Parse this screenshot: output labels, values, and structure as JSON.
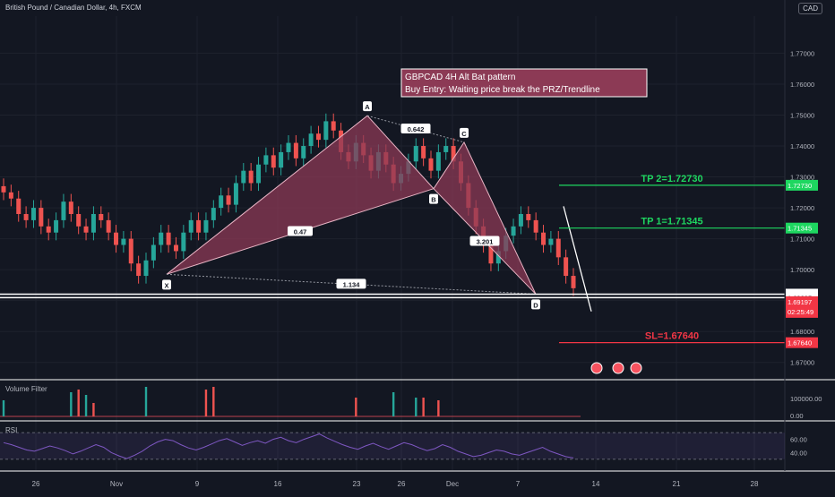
{
  "header": {
    "title": "British Pound / Canadian Dollar, 4h, FXCM",
    "currency_badge": "CAD"
  },
  "annotation": {
    "line1": "GBPCAD 4H Alt Bat pattern",
    "line2": "Buy Entry: Waiting price break the PRZ/Trendline"
  },
  "colors": {
    "bg": "#131722",
    "up": "#26a69a",
    "down": "#ef5350",
    "pattern": "#8c3a55",
    "tp": "#1ed760",
    "sl": "#f23645",
    "rsi": "#7e57c2"
  },
  "chart_data": {
    "type": "candlestick",
    "symbol": "GBPCAD",
    "timeframe": "4h",
    "x_tick_labels": [
      "26",
      "Nov",
      "9",
      "16",
      "23",
      "26",
      "Dec",
      "7",
      "14",
      "21",
      "28"
    ],
    "y_ticks": [
      "1.77000",
      "1.76000",
      "1.75000",
      "1.74000",
      "1.73000",
      "1.72000",
      "1.71000",
      "1.70000",
      "1.69000",
      "1.68000",
      "1.67000"
    ],
    "ylim": [
      1.665,
      1.782
    ],
    "price_series": [
      1.725,
      1.723,
      1.718,
      1.716,
      1.72,
      1.714,
      1.712,
      1.716,
      1.722,
      1.718,
      1.714,
      1.712,
      1.718,
      1.716,
      1.712,
      1.708,
      1.71,
      1.702,
      1.698,
      1.703,
      1.708,
      1.712,
      1.708,
      1.706,
      1.712,
      1.716,
      1.712,
      1.716,
      1.72,
      1.724,
      1.721,
      1.728,
      1.732,
      1.728,
      1.734,
      1.737,
      1.733,
      1.738,
      1.741,
      1.736,
      1.74,
      1.744,
      1.742,
      1.748,
      1.745,
      1.738,
      1.735,
      1.741,
      1.737,
      1.732,
      1.738,
      1.734,
      1.728,
      1.731,
      1.735,
      1.74,
      1.736,
      1.732,
      1.738,
      1.74,
      1.735,
      1.728,
      1.72,
      1.714,
      1.708,
      1.702,
      1.706,
      1.711,
      1.714,
      1.718,
      1.716,
      1.712,
      1.708,
      1.71,
      1.704,
      1.698,
      1.694
    ],
    "pattern": {
      "name": "Alt Bat",
      "points": [
        {
          "label": "X",
          "x": "Nov 4",
          "y": 1.6985
        },
        {
          "label": "A",
          "x": "Nov 23",
          "y": 1.7498
        },
        {
          "label": "B",
          "x": "Nov 30",
          "y": 1.7262
        },
        {
          "label": "C",
          "x": "Dec 2",
          "y": 1.7412
        },
        {
          "label": "D",
          "x": "Dec 8",
          "y": 1.6921
        }
      ],
      "ratios": [
        {
          "label": "0.47",
          "between": "XA-B"
        },
        {
          "label": "0.642",
          "between": "A-C"
        },
        {
          "label": "3.201",
          "between": "BC-D"
        },
        {
          "label": "1.134",
          "between": "XA-D"
        }
      ]
    },
    "levels": [
      {
        "name": "TP 2",
        "label": "TP 2=1.72730",
        "value": 1.7273,
        "tag": "1.72730",
        "color": "#1ed760"
      },
      {
        "name": "TP 1",
        "label": "TP 1=1.71345",
        "value": 1.71345,
        "tag": "1.71345",
        "color": "#1ed760"
      },
      {
        "name": "PRZ upper",
        "label": "",
        "value": 1.69209,
        "tag": "1.69209",
        "color": "#ffffff"
      },
      {
        "name": "PRZ lower",
        "label": "",
        "value": 1.69095,
        "tag": "1.69095",
        "color": "#ffffff"
      },
      {
        "name": "SL",
        "label": "SL=1.67640",
        "value": 1.6764,
        "tag": "1.67640",
        "color": "#f23645"
      }
    ],
    "current_price": {
      "value": 1.69197,
      "tag": "1.69197",
      "countdown": "02:25:49"
    },
    "volume_filter": {
      "title": "Volume Filter",
      "y_ticks": [
        "100000.00",
        "0.00"
      ],
      "bars": [
        {
          "i": 0,
          "v": 0.6,
          "c": "up"
        },
        {
          "i": 9,
          "v": 0.9,
          "c": "up"
        },
        {
          "i": 10,
          "v": 1.0,
          "c": "down"
        },
        {
          "i": 11,
          "v": 0.8,
          "c": "up"
        },
        {
          "i": 12,
          "v": 0.5,
          "c": "down"
        },
        {
          "i": 19,
          "v": 1.1,
          "c": "up"
        },
        {
          "i": 27,
          "v": 1.0,
          "c": "down"
        },
        {
          "i": 28,
          "v": 1.1,
          "c": "down"
        },
        {
          "i": 47,
          "v": 0.7,
          "c": "down"
        },
        {
          "i": 52,
          "v": 0.9,
          "c": "up"
        },
        {
          "i": 55,
          "v": 0.7,
          "c": "up"
        },
        {
          "i": 56,
          "v": 0.7,
          "c": "down"
        },
        {
          "i": 58,
          "v": 0.6,
          "c": "down"
        }
      ]
    },
    "rsi": {
      "title": "RSI",
      "y_ticks": [
        "60.00",
        "40.00"
      ],
      "upper": 70,
      "lower": 30,
      "values": [
        55,
        52,
        48,
        44,
        42,
        46,
        50,
        47,
        43,
        38,
        42,
        47,
        52,
        48,
        40,
        35,
        31,
        36,
        42,
        50,
        56,
        60,
        58,
        52,
        47,
        44,
        48,
        53,
        58,
        61,
        56,
        51,
        55,
        58,
        54,
        60,
        63,
        58,
        55,
        60,
        64,
        68,
        62,
        57,
        52,
        48,
        45,
        50,
        54,
        49,
        45,
        50,
        55,
        52,
        47,
        43,
        46,
        52,
        48,
        42,
        38,
        34,
        36,
        40,
        44,
        42,
        38,
        36,
        40,
        44,
        48,
        42,
        38,
        34,
        32
      ]
    }
  }
}
